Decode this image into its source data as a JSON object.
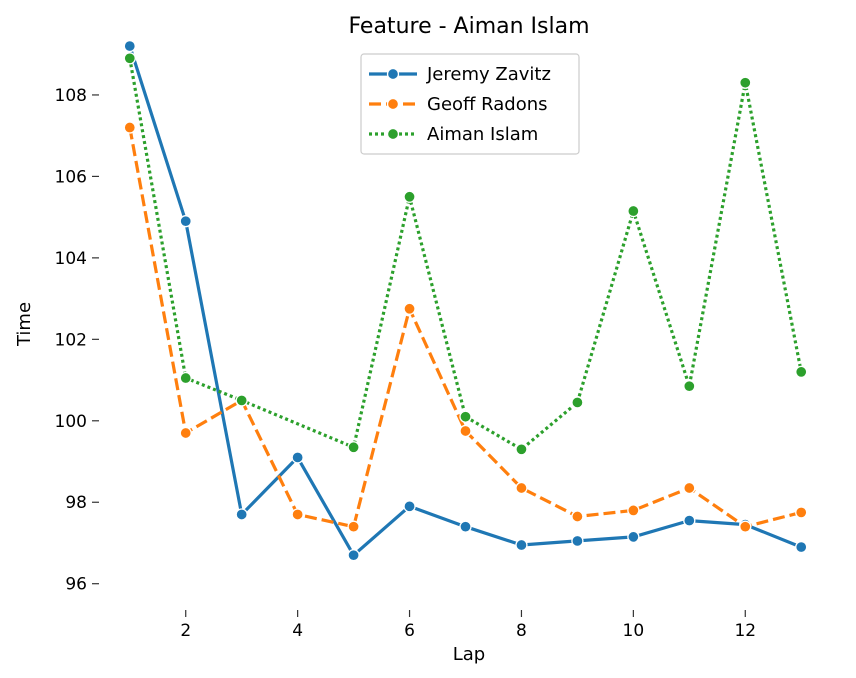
{
  "chart_data": {
    "type": "line",
    "title": "Feature - Aiman Islam",
    "xlabel": "Lap",
    "ylabel": "Time",
    "x": [
      1,
      2,
      3,
      4,
      5,
      6,
      7,
      8,
      9,
      10,
      11,
      12,
      13
    ],
    "xticks": [
      2,
      4,
      6,
      8,
      10,
      12
    ],
    "yticks": [
      96,
      98,
      100,
      102,
      104,
      106,
      108
    ],
    "xlim": [
      0.45,
      13.55
    ],
    "ylim": [
      95.6,
      109.3
    ],
    "grid": false,
    "legend_position": "top-center",
    "series": [
      {
        "name": "Jeremy Zavitz",
        "color": "#1f77b4",
        "dash": "solid",
        "values": [
          109.2,
          104.9,
          97.7,
          99.1,
          96.7,
          97.9,
          97.4,
          96.95,
          97.05,
          97.15,
          97.55,
          97.45,
          96.9
        ]
      },
      {
        "name": "Geoff Radons",
        "color": "#ff7f0e",
        "dash": "dashed",
        "values": [
          107.2,
          99.7,
          100.5,
          97.7,
          97.4,
          102.75,
          99.75,
          98.35,
          97.65,
          97.8,
          98.35,
          97.4,
          97.75
        ]
      },
      {
        "name": "Aiman Islam",
        "color": "#2ca02c",
        "dash": "dotted",
        "values": [
          108.9,
          101.05,
          100.5,
          null,
          99.35,
          105.5,
          100.1,
          99.3,
          100.45,
          105.15,
          100.85,
          108.3,
          101.2
        ]
      }
    ]
  }
}
